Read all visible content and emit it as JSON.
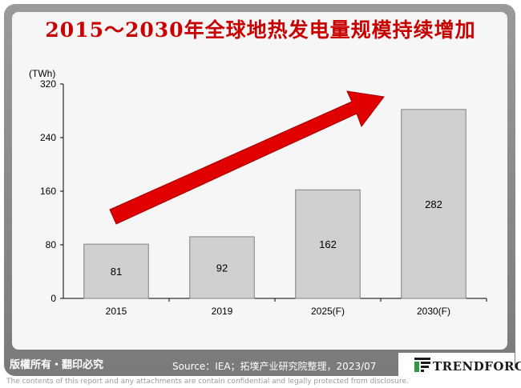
{
  "title": "2015～2030年全球地热发电量规模持续增加",
  "footer": {
    "copyright": "版權所有・翻印必究",
    "source": "Source：IEA；拓墣产业研究院整理，2023/07",
    "logo": "TRENDFORCE",
    "disclaimer": "The contents of this report and any attachments are contain confidential and legally protected from disclosure."
  },
  "colors": {
    "title": "#c80000",
    "bar": "#d0d0d0",
    "bar_stroke": "#808080",
    "arrow": "#e00000",
    "frame": "#8a8a8a",
    "logo_green": "#2e9a46"
  },
  "chart_data": {
    "type": "bar",
    "unit_label": "(TWh)",
    "categories": [
      "2015",
      "2019",
      "2025(F)",
      "2030(F)"
    ],
    "values": [
      81,
      92,
      162,
      282
    ],
    "ylim": [
      0,
      320
    ],
    "yticks": [
      0,
      80,
      160,
      240,
      320
    ],
    "grid": false,
    "annotation": "upward-trend-arrow"
  }
}
